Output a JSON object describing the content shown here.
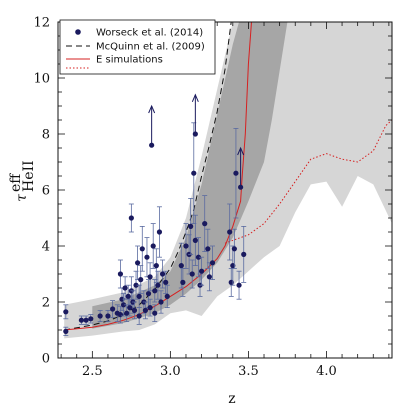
{
  "chart_data": {
    "type": "scatter",
    "xlabel": "z",
    "ylabel": "τ",
    "ylabel_sup": "eff",
    "ylabel_sub": "HeII",
    "xlim": [
      2.28,
      4.42
    ],
    "ylim": [
      0,
      12
    ],
    "x_ticks": [
      2.5,
      3.0,
      3.5,
      4.0
    ],
    "x_tick_labels": [
      "2.5",
      "3.0",
      "3.5",
      "4.0"
    ],
    "y_ticks": [
      0,
      2,
      4,
      6,
      8,
      10,
      12
    ],
    "y_tick_labels": [
      "0",
      "2",
      "4",
      "6",
      "8",
      "10",
      "12"
    ],
    "legend": {
      "placement": "top-left",
      "entries": [
        {
          "label": "Worseck et al. (2014)",
          "style": "marker",
          "color": "#1a1a5e"
        },
        {
          "label": "McQuinn et al. (2009)",
          "style": "dashed",
          "color": "#111111"
        },
        {
          "label": "E simulations",
          "style": "solid",
          "color": "#d62020"
        },
        {
          "label": "",
          "style": "dotted",
          "color": "#d62020"
        }
      ]
    },
    "colors": {
      "points": "#1a1a5e",
      "band_outer": "#d6d6d6",
      "band_inner": "#a6a6a6",
      "simulation": "#d62020",
      "mcquinn": "#111111"
    },
    "bands": [
      {
        "name": "",
        "color": "#d6d6d6",
        "upper": [
          [
            2.32,
            1.9
          ],
          [
            2.5,
            2.1
          ],
          [
            2.7,
            2.35
          ],
          [
            2.9,
            2.9
          ],
          [
            3.0,
            3.6
          ],
          [
            3.1,
            5.0
          ],
          [
            3.2,
            7.2
          ],
          [
            3.3,
            9.6
          ],
          [
            3.4,
            12.0
          ],
          [
            4.42,
            12.0
          ]
        ],
        "lower": [
          [
            4.42,
            4.8
          ],
          [
            4.3,
            6.2
          ],
          [
            4.2,
            6.5
          ],
          [
            4.1,
            5.4
          ],
          [
            4.0,
            6.3
          ],
          [
            3.9,
            6.2
          ],
          [
            3.8,
            5.2
          ],
          [
            3.7,
            4.0
          ],
          [
            3.6,
            3.6
          ],
          [
            3.5,
            3.1
          ],
          [
            3.4,
            2.6
          ],
          [
            3.3,
            2.2
          ],
          [
            3.2,
            1.5
          ],
          [
            3.1,
            1.7
          ],
          [
            3.0,
            1.6
          ],
          [
            2.9,
            1.2
          ],
          [
            2.8,
            1.0
          ],
          [
            2.7,
            0.95
          ],
          [
            2.5,
            0.8
          ],
          [
            2.32,
            0.7
          ]
        ]
      },
      {
        "name": "",
        "color": "#a6a6a6",
        "upper": [
          [
            2.5,
            1.85
          ],
          [
            2.7,
            2.1
          ],
          [
            2.9,
            2.6
          ],
          [
            3.0,
            3.1
          ],
          [
            3.1,
            4.3
          ],
          [
            3.2,
            6.2
          ],
          [
            3.3,
            8.7
          ],
          [
            3.4,
            11.2
          ],
          [
            3.44,
            12.0
          ],
          [
            3.75,
            12.0
          ]
        ],
        "lower": [
          [
            3.75,
            12.0
          ],
          [
            3.65,
            8.5
          ],
          [
            3.6,
            7.0
          ],
          [
            3.5,
            5.6
          ],
          [
            3.4,
            4.3
          ],
          [
            3.3,
            3.4
          ],
          [
            3.2,
            2.8
          ],
          [
            3.1,
            2.3
          ],
          [
            3.0,
            1.9
          ],
          [
            2.9,
            1.6
          ],
          [
            2.7,
            1.25
          ],
          [
            2.5,
            1.05
          ]
        ]
      }
    ],
    "series": [
      {
        "name": "Worseck et al. (2014)",
        "type": "scatter",
        "points": [
          {
            "x": 2.33,
            "y": 1.65,
            "yerr": 0.25
          },
          {
            "x": 2.33,
            "y": 0.95,
            "yerr": 0.15
          },
          {
            "x": 2.43,
            "y": 1.35,
            "yerr": 0.15
          },
          {
            "x": 2.46,
            "y": 1.35,
            "yerr": 0.15
          },
          {
            "x": 2.49,
            "y": 1.4,
            "yerr": 0.15
          },
          {
            "x": 2.55,
            "y": 1.5,
            "yerr": 0.2
          },
          {
            "x": 2.6,
            "y": 1.5,
            "yerr": 0.2
          },
          {
            "x": 2.63,
            "y": 1.75,
            "yerr": 0.3
          },
          {
            "x": 2.66,
            "y": 1.6,
            "yerr": 0.3
          },
          {
            "x": 2.68,
            "y": 1.55,
            "yerr": 0.3
          },
          {
            "x": 2.68,
            "y": 3.0,
            "yerr": 0.5
          },
          {
            "x": 2.69,
            "y": 2.1,
            "yerr": 0.4
          },
          {
            "x": 2.7,
            "y": 1.9,
            "yerr": 0.4
          },
          {
            "x": 2.71,
            "y": 2.5,
            "yerr": 0.4
          },
          {
            "x": 2.72,
            "y": 1.6,
            "yerr": 0.3
          },
          {
            "x": 2.73,
            "y": 2.2,
            "yerr": 0.4
          },
          {
            "x": 2.74,
            "y": 1.8,
            "yerr": 0.3
          },
          {
            "x": 2.75,
            "y": 5.0,
            "yerr": 0.5
          },
          {
            "x": 2.75,
            "y": 2.4,
            "yerr": 0.5
          },
          {
            "x": 2.76,
            "y": 2.0,
            "yerr": 0.4
          },
          {
            "x": 2.77,
            "y": 1.7,
            "yerr": 0.3
          },
          {
            "x": 2.78,
            "y": 2.6,
            "yerr": 0.5
          },
          {
            "x": 2.79,
            "y": 3.4,
            "yerr": 0.6
          },
          {
            "x": 2.8,
            "y": 2.2,
            "yerr": 0.4
          },
          {
            "x": 2.8,
            "y": 1.5,
            "yerr": 0.3
          },
          {
            "x": 2.81,
            "y": 2.8,
            "yerr": 0.5
          },
          {
            "x": 2.82,
            "y": 3.9,
            "yerr": 0.8
          },
          {
            "x": 2.83,
            "y": 2.0,
            "yerr": 0.4
          },
          {
            "x": 2.84,
            "y": 1.7,
            "yerr": 0.3
          },
          {
            "x": 2.85,
            "y": 3.6,
            "yerr": 0.7
          },
          {
            "x": 2.86,
            "y": 2.3,
            "yerr": 0.5
          },
          {
            "x": 2.87,
            "y": 2.9,
            "yerr": 0.5
          },
          {
            "x": 2.87,
            "y": 1.8,
            "yerr": 0.3
          },
          {
            "x": 2.88,
            "y": 7.6,
            "yerr": 0.0,
            "lower_limit": true
          },
          {
            "x": 2.89,
            "y": 4.0,
            "yerr": 0.8
          },
          {
            "x": 2.9,
            "y": 2.4,
            "yerr": 0.4
          },
          {
            "x": 2.9,
            "y": 1.6,
            "yerr": 0.3
          },
          {
            "x": 2.91,
            "y": 3.3,
            "yerr": 0.6
          },
          {
            "x": 2.92,
            "y": 2.6,
            "yerr": 0.5
          },
          {
            "x": 2.93,
            "y": 4.5,
            "yerr": 0.9
          },
          {
            "x": 2.94,
            "y": 2.0,
            "yerr": 0.4
          },
          {
            "x": 2.95,
            "y": 3.0,
            "yerr": 0.5
          },
          {
            "x": 2.97,
            "y": 2.7,
            "yerr": 0.4
          },
          {
            "x": 2.98,
            "y": 2.2,
            "yerr": 0.4
          },
          {
            "x": 3.07,
            "y": 3.3,
            "yerr": 0.8
          },
          {
            "x": 3.08,
            "y": 2.7,
            "yerr": 0.5
          },
          {
            "x": 3.1,
            "y": 4.0,
            "yerr": 0.8
          },
          {
            "x": 3.12,
            "y": 3.7,
            "yerr": 0.7
          },
          {
            "x": 3.13,
            "y": 4.7,
            "yerr": 1.0
          },
          {
            "x": 3.14,
            "y": 3.0,
            "yerr": 0.5
          },
          {
            "x": 3.15,
            "y": 6.6,
            "yerr": 1.8
          },
          {
            "x": 3.16,
            "y": 8.0,
            "yerr": 0.0,
            "lower_limit": true
          },
          {
            "x": 3.16,
            "y": 4.2,
            "yerr": 0.9
          },
          {
            "x": 3.18,
            "y": 3.6,
            "yerr": 0.7
          },
          {
            "x": 3.19,
            "y": 2.6,
            "yerr": 0.4
          },
          {
            "x": 3.2,
            "y": 3.1,
            "yerr": 0.5
          },
          {
            "x": 3.22,
            "y": 4.8,
            "yerr": 1.0
          },
          {
            "x": 3.24,
            "y": 3.9,
            "yerr": 0.7
          },
          {
            "x": 3.25,
            "y": 2.9,
            "yerr": 0.5
          },
          {
            "x": 3.27,
            "y": 3.4,
            "yerr": 0.6
          },
          {
            "x": 3.38,
            "y": 4.5,
            "yerr": 1.0
          },
          {
            "x": 3.39,
            "y": 2.7,
            "yerr": 0.5
          },
          {
            "x": 3.4,
            "y": 3.3,
            "yerr": 0.7
          },
          {
            "x": 3.41,
            "y": 3.9,
            "yerr": 0.7
          },
          {
            "x": 3.42,
            "y": 6.6,
            "yerr": 1.6
          },
          {
            "x": 3.44,
            "y": 2.6,
            "yerr": 0.5
          },
          {
            "x": 3.45,
            "y": 6.1,
            "yerr": 0.0,
            "lower_limit": true
          },
          {
            "x": 3.47,
            "y": 3.7,
            "yerr": 1.0
          }
        ]
      },
      {
        "name": "McQuinn et al. (2009)",
        "type": "line",
        "style": "dashed",
        "points": [
          [
            2.32,
            1.0
          ],
          [
            2.5,
            1.18
          ],
          [
            2.6,
            1.32
          ],
          [
            2.7,
            1.55
          ],
          [
            2.8,
            1.9
          ],
          [
            2.9,
            2.45
          ],
          [
            3.0,
            3.2
          ],
          [
            3.05,
            3.8
          ],
          [
            3.1,
            4.5
          ],
          [
            3.15,
            5.3
          ],
          [
            3.2,
            6.5
          ],
          [
            3.25,
            7.6
          ],
          [
            3.3,
            8.8
          ],
          [
            3.35,
            10.3
          ],
          [
            3.39,
            12.0
          ]
        ]
      },
      {
        "name": "E simulations",
        "type": "line",
        "style": "solid",
        "points": [
          [
            2.32,
            1.0
          ],
          [
            2.5,
            1.1
          ],
          [
            2.6,
            1.2
          ],
          [
            2.7,
            1.35
          ],
          [
            2.8,
            1.55
          ],
          [
            2.9,
            1.85
          ],
          [
            3.0,
            2.2
          ],
          [
            3.1,
            2.55
          ],
          [
            3.2,
            3.0
          ],
          [
            3.3,
            3.55
          ],
          [
            3.35,
            4.0
          ],
          [
            3.4,
            4.7
          ],
          [
            3.45,
            5.6
          ],
          [
            3.46,
            6.5
          ],
          [
            3.48,
            8.0
          ],
          [
            3.5,
            10.5
          ],
          [
            3.52,
            12.0
          ]
        ]
      },
      {
        "name": "",
        "type": "line",
        "style": "dotted",
        "points": [
          [
            3.35,
            4.1
          ],
          [
            3.5,
            4.4
          ],
          [
            3.6,
            4.8
          ],
          [
            3.7,
            5.5
          ],
          [
            3.8,
            6.3
          ],
          [
            3.9,
            7.1
          ],
          [
            4.0,
            7.3
          ],
          [
            4.1,
            7.1
          ],
          [
            4.2,
            7.0
          ],
          [
            4.3,
            7.4
          ],
          [
            4.38,
            8.3
          ],
          [
            4.42,
            8.5
          ]
        ]
      }
    ]
  }
}
